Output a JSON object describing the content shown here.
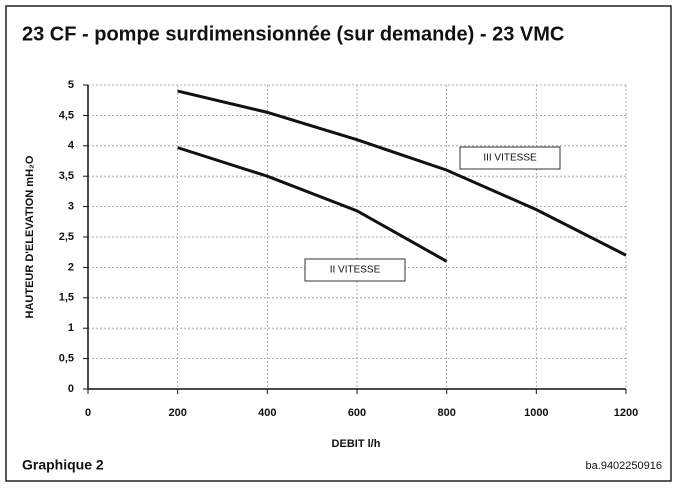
{
  "chart_data": {
    "type": "line",
    "title": "23 CF - pompe surdimensionnée (sur demande) - 23 VMC",
    "xlabel": "DEBIT l/h",
    "ylabel": "HAUTEUR D'ELEVATION mH₂O",
    "footer_left": "Graphique 2",
    "footer_right": "ba.9402250916",
    "x": [
      200,
      400,
      600,
      800,
      1000,
      1200
    ],
    "series": [
      {
        "name": "III VITESSE",
        "color": "#111111",
        "values": [
          4.9,
          4.55,
          4.1,
          3.6,
          2.95,
          2.2
        ]
      },
      {
        "name": "II VITESSE",
        "color": "#111111",
        "values": [
          3.97,
          3.5,
          2.93,
          2.1,
          null,
          null
        ]
      }
    ],
    "xlim": [
      0,
      1200
    ],
    "xticks": [
      0,
      200,
      400,
      600,
      800,
      1000,
      1200
    ],
    "ylim": [
      0,
      5
    ],
    "yticks": [
      0,
      {
        "value": 0.5,
        "label": "0,5"
      },
      1,
      {
        "value": 1.5,
        "label": "1,5"
      },
      2,
      {
        "value": 2.5,
        "label": "2,5"
      },
      3,
      {
        "value": 3.5,
        "label": "3,5"
      },
      4,
      {
        "value": 4.5,
        "label": "4,5"
      },
      5
    ],
    "grid": true
  }
}
